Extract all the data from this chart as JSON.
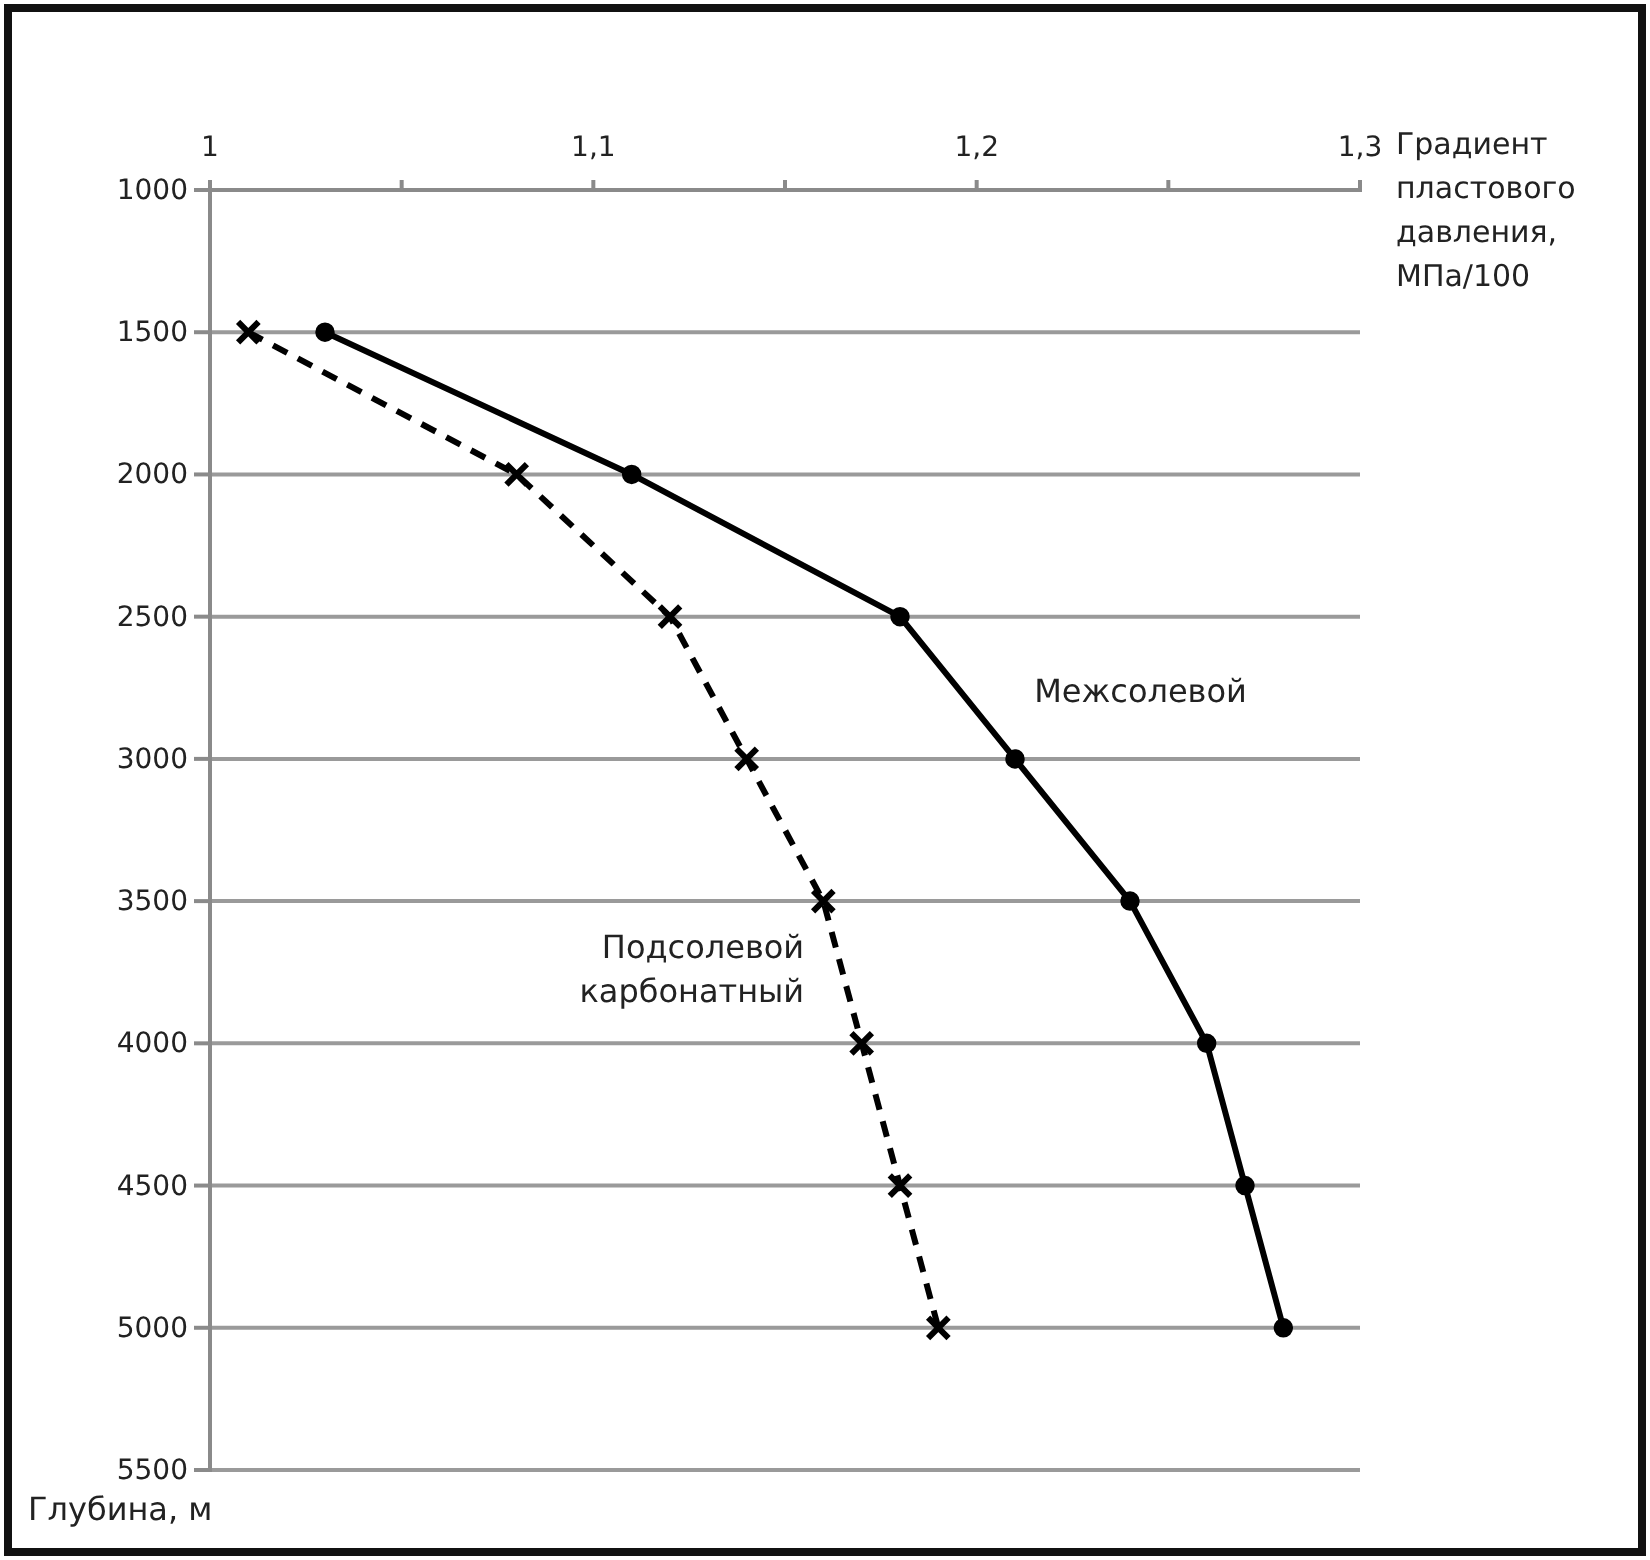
{
  "chart_data": {
    "type": "line",
    "xlabel": "Градиент пластового давления, МПа/100",
    "ylabel": "Глубина, м",
    "xlim": [
      1,
      1.3
    ],
    "xticks": [
      {
        "value": 1,
        "label": "1"
      },
      {
        "value": 1.05,
        "label": null
      },
      {
        "value": 1.1,
        "label": "1,1"
      },
      {
        "value": 1.15,
        "label": null
      },
      {
        "value": 1.2,
        "label": "1,2"
      },
      {
        "value": 1.25,
        "label": null
      },
      {
        "value": 1.3,
        "label": "1,3"
      }
    ],
    "ylim": [
      5500,
      1000
    ],
    "yticks": [
      1000,
      1500,
      2000,
      2500,
      3000,
      3500,
      4000,
      4500,
      5000,
      5500
    ],
    "grid": "y",
    "series": [
      {
        "name": "Межсолевой",
        "color": "#000000",
        "marker": "circle",
        "line_style": "solid",
        "x": [
          1.03,
          1.11,
          1.18,
          1.21,
          1.24,
          1.26,
          1.27,
          1.28
        ],
        "values": [
          1500,
          2000,
          2500,
          3000,
          3500,
          4000,
          4500,
          5000
        ]
      },
      {
        "name": "Подсолевой карбонатный",
        "color": "#000000",
        "marker": "cross",
        "line_style": "dashed",
        "x": [
          1.01,
          1.08,
          1.12,
          1.14,
          1.16,
          1.17,
          1.18,
          1.19
        ],
        "values": [
          1500,
          2000,
          2500,
          3000,
          3500,
          4000,
          4500,
          5000
        ]
      }
    ]
  }
}
